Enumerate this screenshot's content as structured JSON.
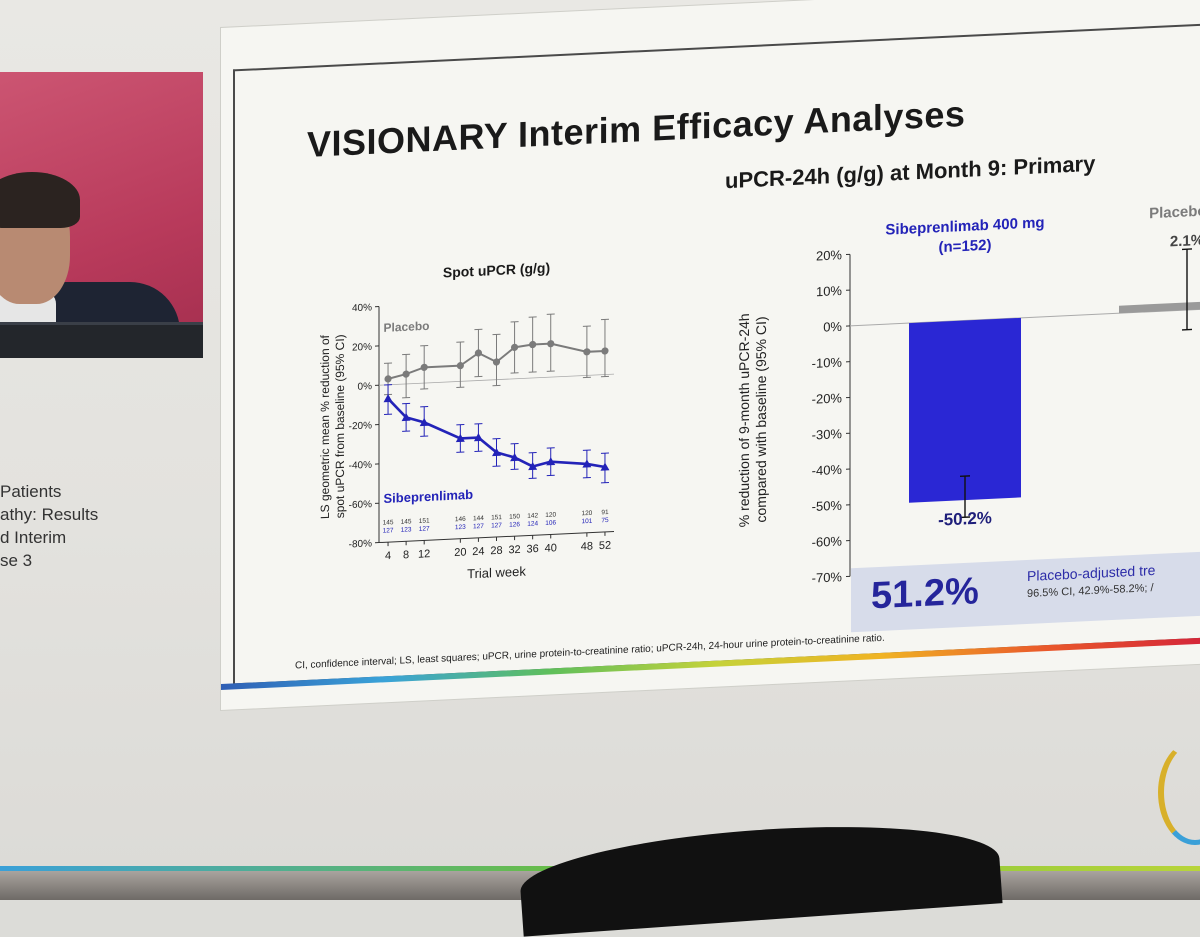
{
  "slide": {
    "title": "VISIONARY Interim Efficacy Analyses",
    "right_title": "uPCR-24h (g/g) at Month 9: Primary",
    "footnote": "CI, confidence interval; LS, least squares; uPCR, urine protein-to-creatinine ratio; uPCR-24h, 24-hour urine protein-to-creatinine ratio."
  },
  "left_title_fragment": [
    "Patients",
    "athy: Results",
    "d Interim",
    "se 3"
  ],
  "stat_box": {
    "value": "51.2%",
    "label": "Placebo-adjusted tre",
    "ci": "96.5% CI, 42.9%-58.2%; /"
  },
  "colors": {
    "placebo": "#7b7b7b",
    "sibeprenlimab": "#2323b8",
    "bar_fill": "#2a27d4",
    "stat_bg": "#d7dcea"
  },
  "chart_data": [
    {
      "type": "line",
      "title": "Spot uPCR (g/g)",
      "xlabel": "Trial week",
      "ylabel_lines": [
        "LS geometric mean % reduction of",
        "spot uPCR from baseline (95% CI)"
      ],
      "x": [
        4,
        8,
        12,
        20,
        24,
        28,
        32,
        36,
        40,
        48,
        52
      ],
      "xlim": [
        2,
        54
      ],
      "ylim": [
        -80,
        40
      ],
      "yticks": [
        40,
        20,
        0,
        -20,
        -40,
        -60,
        -80
      ],
      "ytick_labels": [
        "40%",
        "20%",
        "0%",
        "-20%",
        "-40%",
        "-60%",
        "-80%"
      ],
      "series": [
        {
          "name": "Placebo",
          "values": [
            3,
            5,
            8,
            8,
            14,
            9,
            16,
            17,
            17,
            12,
            12
          ],
          "ci_low": [
            -5,
            -7,
            -3,
            -3,
            2,
            -3,
            3,
            3,
            3,
            -1,
            -1
          ],
          "ci_high": [
            11,
            15,
            19,
            20,
            26,
            23,
            29,
            31,
            32,
            25,
            28
          ],
          "n_at_risk": [
            "145",
            "145",
            "151",
            "146",
            "144",
            "151",
            "150",
            "142",
            "120",
            "120",
            "91"
          ]
        },
        {
          "name": "Sibeprenlimab",
          "values": [
            -7,
            -17,
            -20,
            -29,
            -29,
            -37,
            -40,
            -45,
            -43,
            -45,
            -47
          ],
          "ci_low": [
            -15,
            -24,
            -27,
            -36,
            -36,
            -44,
            -46,
            -51,
            -50,
            -52,
            -55
          ],
          "ci_high": [
            0,
            -10,
            -12,
            -22,
            -22,
            -30,
            -33,
            -38,
            -36,
            -38,
            -40
          ],
          "n_at_risk": [
            "127",
            "123",
            "127",
            "123",
            "127",
            "127",
            "126",
            "124",
            "106",
            "101",
            "75"
          ]
        }
      ],
      "grid": false,
      "reference_line": 0
    },
    {
      "type": "bar",
      "ylabel_lines": [
        "% reduction of 9-month uPCR-24h",
        "compared with baseline (95% CI)"
      ],
      "ylim": [
        -70,
        20
      ],
      "yticks": [
        20,
        10,
        0,
        -10,
        -20,
        -30,
        -40,
        -50,
        -60,
        -70
      ],
      "ytick_labels": [
        "20%",
        "10%",
        "0%",
        "-10%",
        "-20%",
        "-30%",
        "-40%",
        "-50%",
        "-60%",
        "-70%"
      ],
      "categories": [
        "Sibeprenlimab 400 mg",
        "Placebo (n"
      ],
      "category_sublabels": [
        "(n=152)",
        ""
      ],
      "values": [
        -50.2,
        2.1
      ],
      "value_labels": [
        "-50.2%",
        "2.1%"
      ],
      "ci_low": [
        -55.0,
        -5.5
      ],
      "ci_high": [
        -43.5,
        17.0
      ]
    }
  ]
}
